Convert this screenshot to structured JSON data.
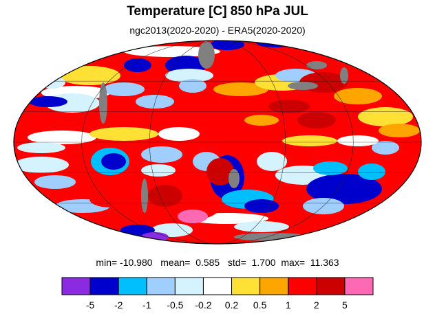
{
  "chart_data": {
    "type": "heatmap",
    "title": "Temperature [C] 850 hPa JUL",
    "subtitle": "ngc2013(2020-2020) - ERA5(2020-2020)",
    "projection": "mollweide",
    "stats": {
      "min_label": "min=",
      "min": "-10.980",
      "mean_label": "mean=",
      "mean": "0.585",
      "std_label": "std=",
      "std": "1.700",
      "max_label": "max=",
      "max": "11.363"
    },
    "missing_color": "#808080",
    "levels": [
      "-5",
      "-2",
      "-1",
      "-0.5",
      "-0.2",
      "0.2",
      "0.5",
      "1",
      "2",
      "5"
    ],
    "colors": [
      "#8a2be2",
      "#0000cd",
      "#00bfff",
      "#a0cfff",
      "#d5f2ff",
      "#ffffff",
      "#ffe135",
      "#ffa500",
      "#ff0000",
      "#cd0000",
      "#ff69b4"
    ]
  }
}
